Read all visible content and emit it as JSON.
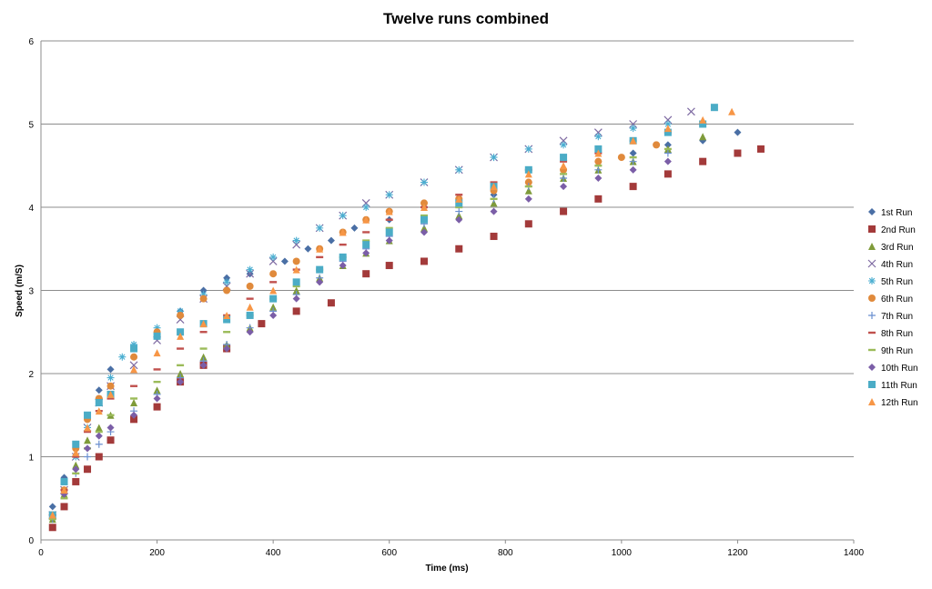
{
  "chart_data": {
    "type": "scatter",
    "title": "Twelve runs combined",
    "xlabel": "Time (ms)",
    "ylabel": "Speed (m/S)",
    "xlim": [
      0,
      1400
    ],
    "ylim": [
      0,
      6
    ],
    "xticks": [
      0,
      200,
      400,
      600,
      800,
      1000,
      1200,
      1400
    ],
    "yticks": [
      0,
      1,
      2,
      3,
      4,
      5,
      6
    ],
    "grid": "horizontal major",
    "legend": "right",
    "series": [
      {
        "name": "1st Run",
        "color": "#4a6fa5",
        "marker": "diamond",
        "x": [
          20,
          40,
          60,
          80,
          100,
          120,
          160,
          200,
          240,
          280,
          320,
          360,
          420,
          460,
          500,
          540,
          600,
          660,
          720,
          780,
          840,
          900,
          960,
          1020,
          1080,
          1140,
          1200
        ],
        "y": [
          0.4,
          0.75,
          1.15,
          1.45,
          1.8,
          2.05,
          2.2,
          2.5,
          2.75,
          3.0,
          3.15,
          3.2,
          3.35,
          3.5,
          3.6,
          3.75,
          3.85,
          4.0,
          4.1,
          4.15,
          4.3,
          4.45,
          4.55,
          4.65,
          4.75,
          4.8,
          4.9
        ]
      },
      {
        "name": "2nd Run",
        "color": "#a33a3a",
        "marker": "square",
        "x": [
          20,
          40,
          60,
          80,
          100,
          120,
          160,
          200,
          240,
          280,
          320,
          380,
          440,
          500,
          560,
          600,
          660,
          720,
          780,
          840,
          900,
          960,
          1020,
          1080,
          1140,
          1200,
          1240
        ],
        "y": [
          0.15,
          0.4,
          0.7,
          0.85,
          1.0,
          1.2,
          1.45,
          1.6,
          1.9,
          2.1,
          2.3,
          2.6,
          2.75,
          2.85,
          3.2,
          3.3,
          3.35,
          3.5,
          3.65,
          3.8,
          3.95,
          4.1,
          4.25,
          4.4,
          4.55,
          4.65,
          4.7
        ]
      },
      {
        "name": "3rd Run",
        "color": "#7f9b3a",
        "marker": "triangle",
        "x": [
          20,
          40,
          60,
          80,
          100,
          120,
          160,
          200,
          240,
          280,
          320,
          360,
          400,
          440,
          480,
          520,
          560,
          600,
          660,
          720,
          780,
          840,
          900,
          960,
          1020,
          1080,
          1140
        ],
        "y": [
          0.25,
          0.55,
          0.9,
          1.2,
          1.35,
          1.5,
          1.65,
          1.8,
          2.0,
          2.2,
          2.35,
          2.55,
          2.8,
          3.0,
          3.15,
          3.3,
          3.45,
          3.6,
          3.75,
          3.9,
          4.05,
          4.2,
          4.35,
          4.45,
          4.55,
          4.7,
          4.85
        ]
      },
      {
        "name": "4th Run",
        "color": "#7e6aa2",
        "marker": "x",
        "x": [
          20,
          40,
          60,
          80,
          100,
          120,
          160,
          200,
          240,
          280,
          320,
          360,
          400,
          440,
          480,
          520,
          560,
          600,
          660,
          720,
          780,
          840,
          900,
          960,
          1020,
          1080,
          1120
        ],
        "y": [
          0.3,
          0.6,
          1.0,
          1.35,
          1.65,
          1.85,
          2.1,
          2.4,
          2.65,
          2.9,
          3.05,
          3.2,
          3.35,
          3.55,
          3.75,
          3.9,
          4.05,
          4.15,
          4.3,
          4.45,
          4.6,
          4.7,
          4.8,
          4.9,
          5.0,
          5.05,
          5.15
        ]
      },
      {
        "name": "5th Run",
        "color": "#4aaed1",
        "marker": "star",
        "x": [
          20,
          40,
          60,
          80,
          100,
          120,
          140,
          160,
          200,
          240,
          280,
          320,
          360,
          400,
          440,
          480,
          520,
          560,
          600,
          660,
          720,
          780,
          840,
          900,
          960,
          1020,
          1080
        ],
        "y": [
          0.3,
          0.6,
          1.0,
          1.35,
          1.7,
          1.95,
          2.2,
          2.35,
          2.55,
          2.75,
          2.95,
          3.1,
          3.25,
          3.4,
          3.6,
          3.75,
          3.9,
          4.0,
          4.15,
          4.3,
          4.45,
          4.6,
          4.7,
          4.75,
          4.85,
          4.95,
          5.0
        ]
      },
      {
        "name": "6th Run",
        "color": "#e08a3c",
        "marker": "circle",
        "x": [
          20,
          40,
          60,
          80,
          100,
          120,
          160,
          200,
          240,
          280,
          320,
          360,
          400,
          440,
          480,
          520,
          560,
          600,
          660,
          720,
          780,
          840,
          900,
          960,
          1000,
          1060
        ],
        "y": [
          0.3,
          0.6,
          1.1,
          1.45,
          1.7,
          1.85,
          2.2,
          2.5,
          2.7,
          2.9,
          3.0,
          3.05,
          3.2,
          3.35,
          3.5,
          3.7,
          3.85,
          3.95,
          4.05,
          4.1,
          4.2,
          4.3,
          4.45,
          4.55,
          4.6,
          4.75
        ]
      },
      {
        "name": "7th Run",
        "color": "#6a8fd0",
        "marker": "plus",
        "x": [
          20,
          40,
          60,
          80,
          100,
          120,
          160,
          200,
          240,
          280,
          320,
          360,
          400,
          440,
          480,
          520,
          560,
          600,
          660,
          720,
          780,
          840,
          900,
          960,
          1020,
          1080
        ],
        "y": [
          0.25,
          0.55,
          0.8,
          1.0,
          1.15,
          1.3,
          1.55,
          1.75,
          1.95,
          2.15,
          2.35,
          2.55,
          2.75,
          2.95,
          3.15,
          3.35,
          3.5,
          3.65,
          3.8,
          3.95,
          4.1,
          4.25,
          4.35,
          4.45,
          4.55,
          4.65
        ]
      },
      {
        "name": "8th Run",
        "color": "#c0504d",
        "marker": "dash",
        "x": [
          20,
          40,
          60,
          80,
          100,
          120,
          160,
          200,
          240,
          280,
          320,
          360,
          400,
          440,
          480,
          520,
          560,
          600,
          660,
          720,
          780,
          840,
          900,
          960,
          1020,
          1080,
          1140
        ],
        "y": [
          0.3,
          0.6,
          1.0,
          1.3,
          1.55,
          1.7,
          1.85,
          2.05,
          2.3,
          2.5,
          2.7,
          2.9,
          3.1,
          3.25,
          3.4,
          3.55,
          3.7,
          3.85,
          4.0,
          4.15,
          4.3,
          4.45,
          4.55,
          4.65,
          4.8,
          4.9,
          5.0
        ]
      },
      {
        "name": "9th Run",
        "color": "#9bbb59",
        "marker": "dash",
        "x": [
          20,
          40,
          60,
          80,
          100,
          120,
          160,
          200,
          240,
          280,
          320,
          360,
          400,
          440,
          480,
          520,
          560,
          600,
          660,
          720,
          780,
          840,
          900,
          960,
          1020,
          1080
        ],
        "y": [
          0.25,
          0.5,
          0.8,
          1.1,
          1.3,
          1.5,
          1.7,
          1.9,
          2.1,
          2.3,
          2.5,
          2.7,
          2.9,
          3.05,
          3.25,
          3.4,
          3.6,
          3.75,
          3.9,
          4.0,
          4.1,
          4.25,
          4.4,
          4.5,
          4.6,
          4.7
        ]
      },
      {
        "name": "10th Run",
        "color": "#7b5ea7",
        "marker": "diamond",
        "x": [
          20,
          40,
          60,
          80,
          100,
          120,
          160,
          200,
          240,
          280,
          320,
          360,
          400,
          440,
          480,
          520,
          560,
          600,
          660,
          720,
          780,
          840,
          900,
          960,
          1020,
          1080
        ],
        "y": [
          0.3,
          0.55,
          0.85,
          1.1,
          1.25,
          1.35,
          1.5,
          1.7,
          1.9,
          2.1,
          2.3,
          2.5,
          2.7,
          2.9,
          3.1,
          3.3,
          3.45,
          3.6,
          3.7,
          3.85,
          3.95,
          4.1,
          4.25,
          4.35,
          4.45,
          4.55
        ]
      },
      {
        "name": "11th Run",
        "color": "#4bacc6",
        "marker": "square",
        "x": [
          20,
          40,
          60,
          80,
          100,
          120,
          160,
          200,
          240,
          280,
          320,
          360,
          400,
          440,
          480,
          520,
          560,
          600,
          660,
          720,
          780,
          840,
          900,
          960,
          1020,
          1080,
          1140,
          1160
        ],
        "y": [
          0.3,
          0.7,
          1.15,
          1.5,
          1.65,
          1.75,
          2.3,
          2.45,
          2.5,
          2.6,
          2.65,
          2.7,
          2.9,
          3.1,
          3.25,
          3.4,
          3.55,
          3.7,
          3.85,
          4.05,
          4.25,
          4.45,
          4.6,
          4.7,
          4.8,
          4.9,
          5.0,
          5.2
        ]
      },
      {
        "name": "12th Run",
        "color": "#f79646",
        "marker": "triangle",
        "x": [
          20,
          40,
          60,
          80,
          100,
          120,
          160,
          200,
          240,
          280,
          320,
          360,
          400,
          440,
          480,
          520,
          560,
          600,
          660,
          720,
          780,
          840,
          900,
          960,
          1020,
          1080,
          1140,
          1190
        ],
        "y": [
          0.3,
          0.6,
          1.05,
          1.35,
          1.55,
          1.75,
          2.05,
          2.25,
          2.45,
          2.6,
          2.7,
          2.8,
          3.0,
          3.25,
          3.5,
          3.7,
          3.85,
          3.95,
          4.0,
          4.1,
          4.25,
          4.4,
          4.5,
          4.65,
          4.8,
          4.95,
          5.05,
          5.15
        ]
      }
    ]
  }
}
